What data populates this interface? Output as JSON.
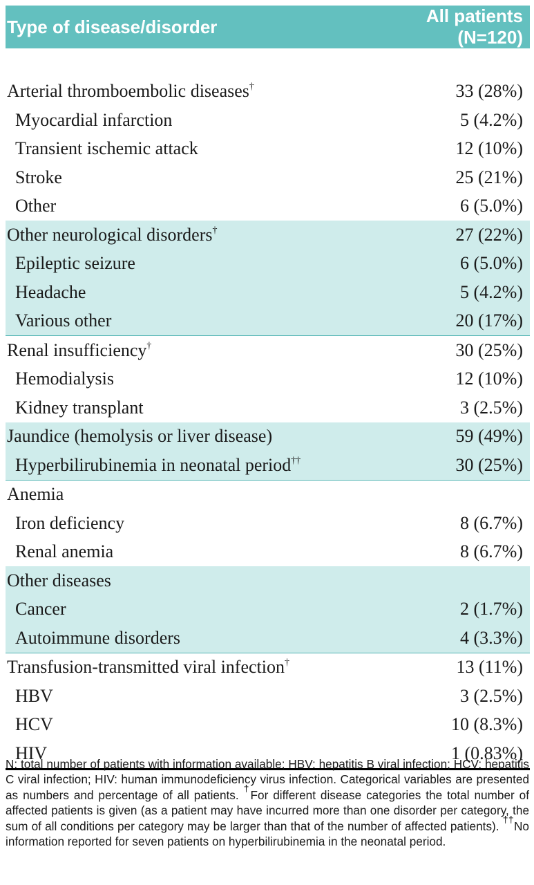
{
  "header": {
    "col1": "Type of disease/disorder",
    "col2_line1": "All patients",
    "col2_line2": "(N=120)"
  },
  "rows": [
    {
      "label": "Arterial thromboembolic diseases",
      "mark": "†",
      "value": "33 (28%)"
    },
    {
      "label": "Myocardial infarction",
      "value": "5 (4.2%)"
    },
    {
      "label": "Transient ischemic attack",
      "value": "12 (10%)"
    },
    {
      "label": "Stroke",
      "value": "25 (21%)"
    },
    {
      "label": "Other",
      "value": "6 (5.0%)"
    },
    {
      "label": "Other neurological disorders",
      "mark": "†",
      "value": "27 (22%)"
    },
    {
      "label": "Epileptic seizure",
      "value": "6 (5.0%)"
    },
    {
      "label": "Headache",
      "value": "5 (4.2%)"
    },
    {
      "label": "Various other",
      "value": "20 (17%)"
    },
    {
      "label": "Renal insufficiency",
      "mark": "†",
      "value": "30 (25%)"
    },
    {
      "label": "Hemodialysis",
      "value": "12 (10%)"
    },
    {
      "label": "Kidney transplant",
      "value": "3 (2.5%)"
    },
    {
      "label": "Jaundice (hemolysis or liver disease)",
      "value": "59 (49%)"
    },
    {
      "label": "Hyperbilirubinemia in neonatal period",
      "mark": "††",
      "value": "30 (25%)"
    },
    {
      "label": "Anemia",
      "value": ""
    },
    {
      "label": "Iron deficiency",
      "value": "8 (6.7%)"
    },
    {
      "label": "Renal anemia",
      "value": "8 (6.7%)"
    },
    {
      "label": "Other diseases",
      "value": ""
    },
    {
      "label": "Cancer",
      "value": "2 (1.7%)"
    },
    {
      "label": "Autoimmune disorders",
      "value": "4 (3.3%)"
    },
    {
      "label": "Transfusion-transmitted viral infection",
      "mark": "†",
      "value": "13 (11%)"
    },
    {
      "label": "HBV",
      "value": "3 (2.5%)"
    },
    {
      "label": "HCV",
      "value": "10 (8.3%)"
    },
    {
      "label": "HIV",
      "value": "1 (0.83%)"
    }
  ],
  "footnote": {
    "text1": "N: total number of patients with information available; HBV: hepatitis B viral infection; HCV: hepatitis  C viral infection; HIV: human immunodeficiency virus infection. Categorical variables are presented as numbers and percentage of all patients. ",
    "mark1": "†",
    "text2": "For different disease categories the total number of affected patients is given (as a patient may have incurred more than one disorder per category, the sum of all conditions per category may be larger than that of the number of affected patients). ",
    "mark2": "††",
    "text3": "No information reported for seven patients on hyperbilirubinemia in the neonatal period."
  },
  "colors": {
    "header_bg": "#63c0bf",
    "shade_bg": "#cfeceb",
    "rule": "#4fb3b2"
  }
}
